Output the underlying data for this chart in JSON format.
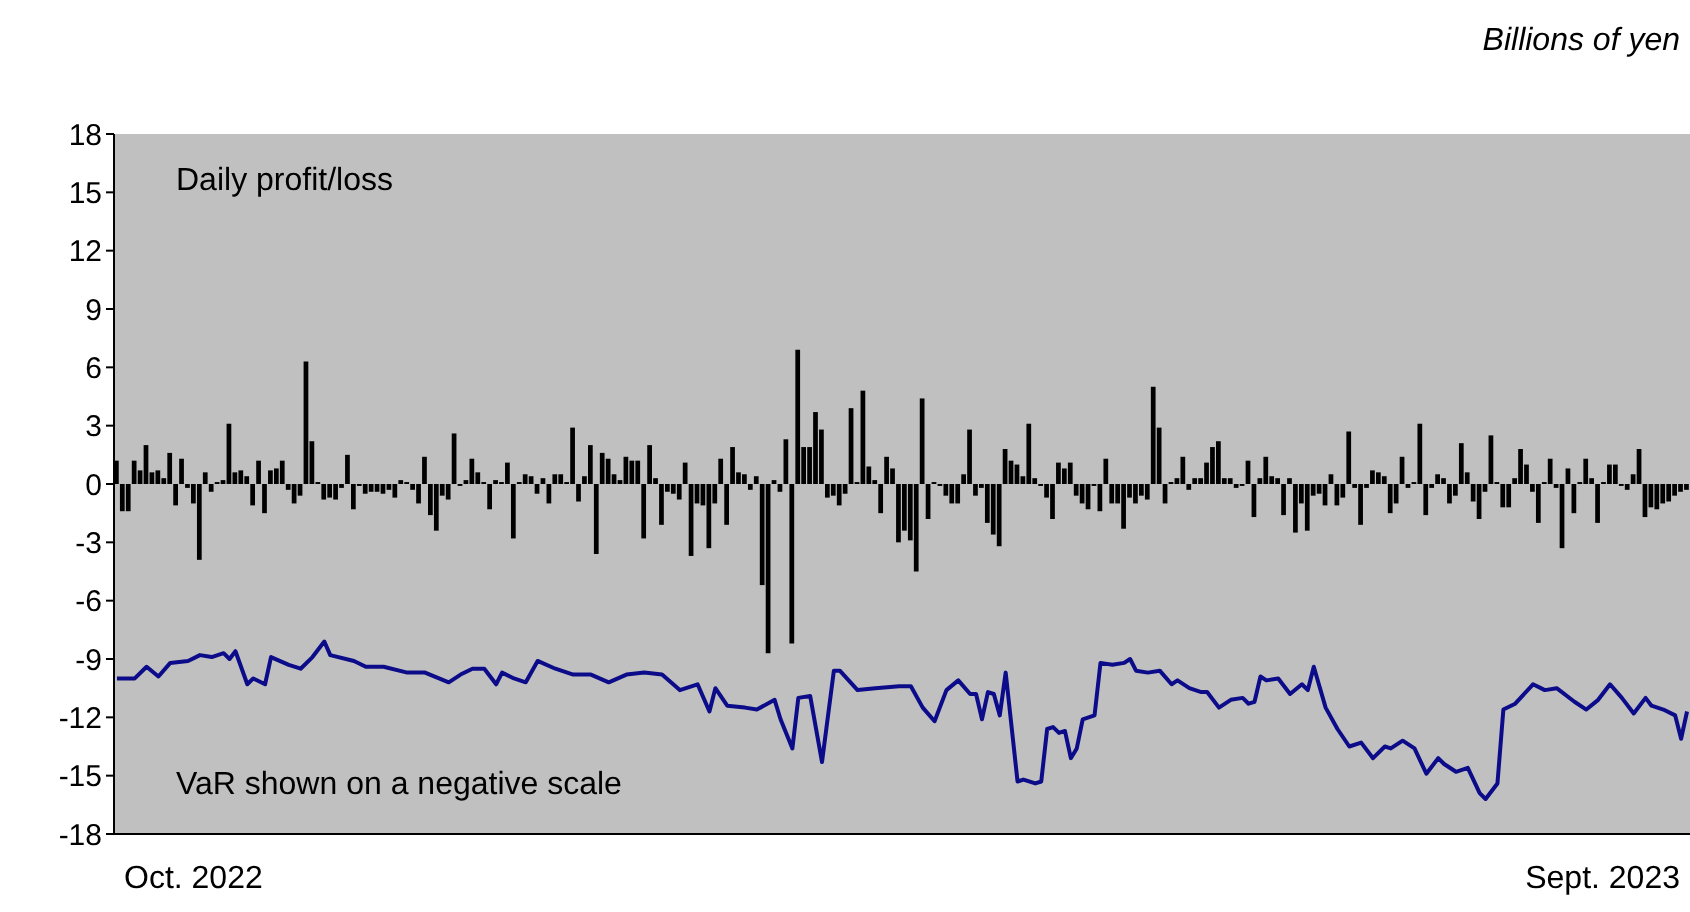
{
  "chart_data": {
    "type": "bar",
    "ylabel": "Billions of yen",
    "annotations": [
      "Daily profit/loss",
      "VaR shown on a negative scale",
      "Oct. 2022",
      "Sept. 2023"
    ],
    "categories": [
      null,
      null,
      null,
      null,
      null,
      null,
      null,
      null,
      null,
      null,
      null,
      null,
      null,
      null,
      null,
      null,
      null,
      null,
      null,
      null,
      null,
      null,
      null,
      null,
      null,
      null,
      null,
      null,
      null,
      null,
      null,
      null,
      null,
      null,
      null,
      null,
      null,
      null,
      null,
      null,
      null,
      null,
      null,
      null,
      null,
      null,
      null,
      null,
      null,
      null,
      null,
      null,
      null,
      null,
      null,
      null,
      null,
      null,
      null,
      null,
      null,
      null,
      null,
      null,
      null,
      null,
      null,
      null,
      null,
      null,
      null,
      null,
      null,
      null,
      null,
      null,
      null,
      null,
      null,
      null,
      null,
      null,
      null,
      null,
      null,
      null,
      null,
      null,
      null,
      null,
      null,
      null,
      null,
      null,
      null,
      null,
      null,
      null,
      null,
      null,
      null,
      null,
      null,
      null,
      null,
      null,
      null,
      null,
      null,
      null,
      null,
      null,
      null,
      null,
      null,
      null,
      null,
      null,
      null,
      null,
      null,
      null,
      null,
      null,
      null,
      null,
      null,
      null,
      null,
      null,
      null,
      null,
      null,
      null,
      null,
      null,
      null,
      null,
      null,
      null,
      null,
      null,
      null,
      null,
      null,
      null,
      null,
      null,
      null,
      null,
      null,
      null,
      null,
      null,
      null,
      null,
      null,
      null,
      null,
      null,
      null,
      null,
      null,
      null,
      null,
      null,
      null,
      null,
      null,
      null,
      null,
      null,
      null,
      null,
      null,
      null,
      null,
      null,
      null,
      null,
      null,
      null,
      null,
      null,
      null,
      null,
      null,
      null,
      null,
      null,
      null,
      null,
      null,
      null,
      null,
      null,
      null,
      null,
      null,
      null,
      null,
      null,
      null,
      null,
      null,
      null,
      null,
      null,
      null,
      null,
      null,
      null,
      null,
      null,
      null,
      null,
      null,
      null,
      null,
      null,
      null,
      null,
      null,
      null,
      null,
      null,
      null,
      null,
      null,
      null,
      null,
      null,
      null,
      null,
      null,
      null,
      null,
      null,
      null,
      null,
      null,
      null,
      null,
      null,
      null,
      null,
      null,
      null,
      null,
      null,
      null,
      null,
      null,
      null,
      null,
      null,
      null,
      null,
      null,
      null,
      null,
      null,
      null,
      null,
      null,
      null
    ],
    "series": [
      {
        "color": "#000000",
        "values": [
          1.2,
          -1.4,
          -1.4,
          1.2,
          0.7,
          2,
          0.6,
          0.7,
          0.3,
          1.6,
          -1.1,
          1.3,
          -0.2,
          -1,
          -3.9,
          0.6,
          -0.4,
          0.1,
          0.2,
          3.1,
          0.6,
          0.7,
          0.4,
          -1.1,
          1.2,
          -1.5,
          0.7,
          0.8,
          1.2,
          -0.3,
          -1,
          -0.6,
          6.3,
          2.2,
          0.1,
          -0.8,
          -0.7,
          -0.8,
          -0.2,
          1.5,
          -1.3,
          -0.1,
          -0.5,
          -0.4,
          -0.4,
          -0.5,
          -0.3,
          -0.7,
          0.2,
          0.1,
          -0.3,
          -1,
          1.4,
          -1.6,
          -2.4,
          -0.6,
          -0.8,
          2.6,
          -0.1,
          0.2,
          1.3,
          0.6,
          0.1,
          -1.3,
          0.2,
          0.1,
          1.1,
          -2.8,
          0.1,
          0.5,
          0.4,
          -0.5,
          0.3,
          -1,
          0.5,
          0.5,
          0.1,
          2.9,
          -0.9,
          0.4,
          2,
          -3.6,
          1.6,
          1.3,
          0.5,
          0.2,
          1.4,
          1.2,
          1.2,
          -2.8,
          2,
          0.3,
          -2.1,
          -0.4,
          -0.5,
          -0.8,
          1.1,
          -3.7,
          -1,
          -1.1,
          -3.3,
          -1,
          1.3,
          -2.1,
          1.9,
          0.6,
          0.5,
          -0.3,
          0.4,
          -5.2,
          -8.7,
          0.2,
          -0.4,
          2.3,
          -8.2,
          6.9,
          1.9,
          1.9,
          3.7,
          2.8,
          -0.7,
          -0.6,
          -1.1,
          -0.5,
          3.9,
          0.1,
          4.8,
          0.9,
          0.2,
          -1.5,
          1.4,
          0.8,
          -3,
          -2.4,
          -2.9,
          -4.5,
          4.4,
          -1.8,
          0.1,
          -0.1,
          -0.6,
          -1,
          -1,
          0.5,
          2.8,
          -0.6,
          -0.2,
          -2,
          -2.6,
          -3.2,
          1.8,
          1.2,
          1,
          0.4,
          3.1,
          0.3,
          -0.1,
          -0.7,
          -1.8,
          1.1,
          0.8,
          1.1,
          -0.6,
          -1,
          -1.3,
          -0.1,
          -1.4,
          1.3,
          -1,
          -1,
          -2.3,
          -0.7,
          -1,
          -0.6,
          -0.8,
          5,
          2.9,
          -1,
          0.1,
          0.3,
          1.4,
          -0.3,
          0.3,
          0.3,
          1.1,
          1.9,
          2.2,
          0.3,
          0.3,
          -0.2,
          -0.1,
          1.2,
          -1.7,
          0.3,
          1.4,
          0.4,
          0.3,
          -1.6,
          0.3,
          -2.5,
          -1,
          -2.4,
          -0.6,
          -0.5,
          -1.1,
          0.5,
          -1.1,
          -0.7,
          2.7,
          -0.2,
          -2.1,
          -0.2,
          0.7,
          0.6,
          0.4,
          -1.5,
          -1,
          1.4,
          -0.2,
          0.1,
          3.1,
          -1.6,
          -0.2,
          0.5,
          0.3,
          -1,
          -0.6,
          2.1,
          0.6,
          -0.9,
          -1.8,
          -0.4,
          2.5,
          0.1,
          -1.2,
          -1.2,
          0.3,
          1.8,
          1,
          -0.4,
          -2,
          0.1,
          1.3,
          -0.2,
          -3.3,
          0.8,
          -1.5,
          0.1,
          1.3,
          0.3,
          -2,
          0.1,
          1,
          1,
          -0.1,
          -0.3,
          0.5,
          1.8,
          -1.7,
          -1.2,
          -1.3,
          -1,
          -0.9,
          -0.6,
          -0.4,
          -0.3
        ]
      },
      {
        "type": "line",
        "color": "#0c0c8a",
        "values": [
          -10,
          null,
          null,
          -10,
          null,
          -9.4,
          null,
          -9.9,
          null,
          -9.2,
          null,
          null,
          -9.1,
          null,
          -8.8,
          null,
          -8.9,
          null,
          -8.7,
          -9,
          -8.6,
          null,
          -10.3,
          -10,
          null,
          -10.3,
          -8.9,
          null,
          null,
          -9.3,
          null,
          -9.5,
          null,
          -8.9,
          null,
          -8.1,
          -8.8,
          null,
          null,
          null,
          -9.1,
          null,
          -9.4,
          null,
          null,
          -9.4,
          null,
          null,
          null,
          -9.7,
          null,
          null,
          -9.7,
          null,
          null,
          null,
          -10.2,
          null,
          -9.8,
          null,
          -9.5,
          null,
          -9.5,
          null,
          -10.3,
          -9.7,
          null,
          -10,
          null,
          -10.2,
          null,
          -9.1,
          null,
          null,
          -9.5,
          null,
          null,
          -9.8,
          null,
          null,
          -9.8,
          null,
          null,
          -10.2,
          null,
          null,
          -9.8,
          null,
          null,
          -9.7,
          null,
          null,
          -9.8,
          null,
          null,
          -10.6,
          null,
          null,
          -10.3,
          null,
          -11.7,
          -10.5,
          null,
          -11.4,
          null,
          null,
          -11.5,
          null,
          -11.6,
          null,
          null,
          -11.1,
          -12.1,
          null,
          -13.6,
          -11,
          null,
          -10.9,
          null,
          -14.3,
          null,
          -9.6,
          -9.6,
          null,
          null,
          -10.6,
          null,
          null,
          -10.5,
          null,
          null,
          null,
          -10.4,
          null,
          -10.4,
          null,
          -11.5,
          null,
          -12.2,
          null,
          -10.6,
          null,
          -10.1,
          null,
          -10.8,
          -10.8,
          -12.1,
          -10.7,
          -10.8,
          -11.9,
          -9.7,
          null,
          -15.3,
          -15.2,
          null,
          -15.4,
          -15.3,
          -12.6,
          -12.5,
          -12.8,
          -12.7,
          -14.1,
          -13.6,
          -12.1,
          null,
          -11.9,
          -9.2,
          null,
          -9.3,
          null,
          -9.2,
          -9,
          -9.6,
          null,
          -9.7,
          null,
          -9.6,
          null,
          -10.3,
          -10.1,
          null,
          -10.5,
          null,
          -10.7,
          -10.7,
          null,
          -11.5,
          null,
          -11.1,
          null,
          -11,
          -11.3,
          -11.2,
          -9.9,
          -10.1,
          null,
          -10,
          null,
          -10.8,
          null,
          -10.3,
          -10.6,
          -9.4,
          null,
          -11.5,
          null,
          -12.6,
          null,
          -13.5,
          null,
          -13.3,
          null,
          -14.1,
          null,
          -13.5,
          -13.6,
          null,
          -13.2,
          null,
          -13.6,
          null,
          -14.9,
          null,
          -14.1,
          -14.4,
          null,
          -14.8,
          null,
          -14.6,
          null,
          -15.9,
          -16.2,
          null,
          -15.4,
          -11.6,
          null,
          -11.3,
          null,
          null,
          -10.3,
          null,
          -10.6,
          null,
          -10.5,
          null,
          null,
          -11.2,
          null,
          -11.6,
          null,
          -11.1,
          null,
          -10.3,
          null,
          -11,
          null,
          -11.8,
          null,
          -11,
          -11.4,
          null,
          -11.6,
          null,
          -11.9,
          -13.1,
          -11.7
        ]
      }
    ],
    "ylim": [
      -18,
      18
    ],
    "yticks": [
      -18,
      -15,
      -12,
      -9,
      -6,
      -3,
      0,
      3,
      6,
      9,
      12,
      15,
      18
    ]
  }
}
